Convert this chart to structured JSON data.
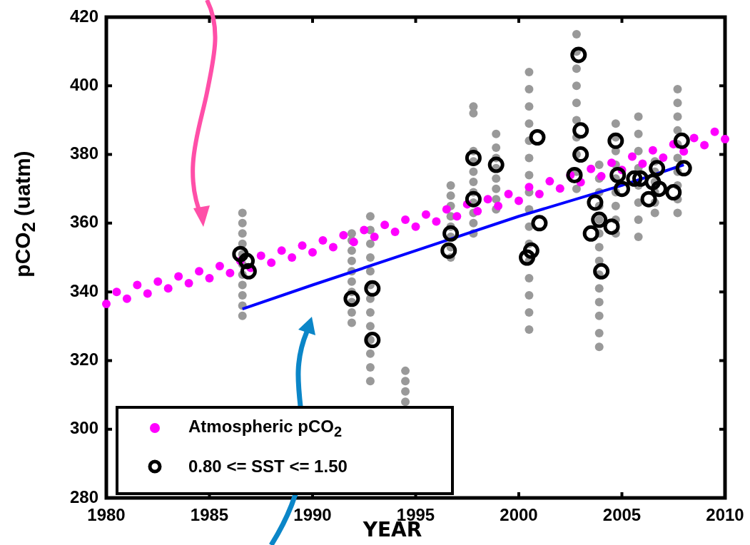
{
  "chart_data": {
    "type": "scatter",
    "xlabel": "YEAR",
    "ylabel": "pCO$_{2}$ (uatm)",
    "xlim": [
      1980,
      2010
    ],
    "xticks": [
      1980,
      1985,
      1990,
      1995,
      2000,
      2005,
      2010
    ],
    "ylim": [
      280,
      420
    ],
    "yticks": [
      280,
      300,
      320,
      340,
      360,
      380,
      400,
      420
    ],
    "grid": false,
    "legend": "bottom left",
    "series": [
      {
        "color": "#999999",
        "marker": "circle",
        "x": [
          1986.6,
          1986.6,
          1986.6,
          1986.6,
          1986.6,
          1986.6,
          1986.6,
          1986.6,
          1986.6,
          1986.6,
          1986.6,
          1991.9,
          1991.9,
          1991.9,
          1991.9,
          1991.9,
          1991.9,
          1991.9,
          1991.9,
          1991.9,
          1991.9,
          1992.8,
          1992.8,
          1992.8,
          1992.8,
          1992.8,
          1992.8,
          1992.8,
          1992.8,
          1992.8,
          1992.8,
          1992.8,
          1992.8,
          1992.8,
          1994.5,
          1994.5,
          1994.5,
          1994.5,
          1996.7,
          1996.7,
          1996.7,
          1996.7,
          1996.7,
          1996.7,
          1996.7,
          1996.7,
          1997.8,
          1997.8,
          1997.8,
          1997.8,
          1997.8,
          1997.8,
          1997.8,
          1997.8,
          1997.8,
          1997.8,
          1997.8,
          1998.9,
          1998.9,
          1998.9,
          1998.9,
          1998.9,
          1998.9,
          1998.9,
          1998.9,
          2000.5,
          2000.5,
          2000.5,
          2000.5,
          2000.5,
          2000.5,
          2000.5,
          2000.5,
          2000.5,
          2000.5,
          2000.5,
          2000.5,
          2000.5,
          2000.5,
          2000.5,
          2000.5,
          2002.8,
          2002.8,
          2002.8,
          2002.8,
          2002.8,
          2002.8,
          2002.8,
          2002.8,
          2002.8,
          2002.8,
          2003.9,
          2003.9,
          2003.9,
          2003.9,
          2003.9,
          2003.9,
          2003.9,
          2003.9,
          2003.9,
          2003.9,
          2003.9,
          2003.9,
          2003.9,
          2003.9,
          2004.7,
          2004.7,
          2004.7,
          2004.7,
          2004.7,
          2004.7,
          2004.7,
          2004.7,
          2004.7,
          2005.8,
          2005.8,
          2005.8,
          2005.8,
          2005.8,
          2005.8,
          2005.8,
          2005.8,
          2006.6,
          2006.6,
          2006.6,
          2006.6,
          2006.6,
          2006.6,
          2007.7,
          2007.7,
          2007.7,
          2007.7,
          2007.7,
          2007.7,
          2007.7,
          2007.7,
          2007.7,
          2007.7
        ],
        "values": [
          333,
          336,
          339,
          342,
          345,
          348,
          351,
          354,
          357,
          360,
          363,
          331,
          334,
          337,
          340,
          343,
          346,
          349,
          352,
          355,
          357,
          314,
          318,
          322,
          326,
          330,
          334,
          338,
          342,
          346,
          350,
          354,
          358,
          362,
          308,
          311,
          314,
          317,
          350,
          353,
          356,
          359,
          362,
          365,
          368,
          371,
          357,
          360,
          363,
          366,
          369,
          372,
          375,
          378,
          381,
          392,
          394,
          364,
          367,
          370,
          373,
          376,
          379,
          382,
          386,
          329,
          334,
          339,
          344,
          349,
          354,
          359,
          364,
          369,
          374,
          379,
          384,
          389,
          394,
          399,
          404,
          370,
          375,
          380,
          385,
          390,
          395,
          400,
          405,
          410,
          415,
          324,
          328,
          333,
          337,
          341,
          345,
          349,
          353,
          357,
          361,
          365,
          369,
          373,
          377,
          357,
          361,
          365,
          369,
          373,
          377,
          381,
          385,
          389,
          356,
          361,
          366,
          371,
          376,
          381,
          386,
          391,
          363,
          366,
          369,
          372,
          375,
          378,
          363,
          367,
          371,
          375,
          379,
          383,
          387,
          391,
          395,
          399
        ]
      },
      {
        "name": "Atmospheric pCO$_{2}$",
        "color": "#ff00ff",
        "marker": "circle",
        "x": [
          1980,
          1980.5,
          1981,
          1981.5,
          1982,
          1982.5,
          1983,
          1983.5,
          1984,
          1984.5,
          1985,
          1985.5,
          1986,
          1986.5,
          1987,
          1987.5,
          1988,
          1988.5,
          1989,
          1989.5,
          1990,
          1990.5,
          1991,
          1991.5,
          1992,
          1992.5,
          1993,
          1993.5,
          1994,
          1994.5,
          1995,
          1995.5,
          1996,
          1996.5,
          1997,
          1997.5,
          1998,
          1998.5,
          1999,
          1999.5,
          2000,
          2000.5,
          2001,
          2001.5,
          2002,
          2002.5,
          2003,
          2003.5,
          2004,
          2004.5,
          2005,
          2005.5,
          2006,
          2006.5,
          2007,
          2007.5,
          2008,
          2008.5,
          2009,
          2009.5,
          2010
        ],
        "values": [
          336.5,
          340,
          338,
          342,
          339.5,
          343,
          341,
          344.5,
          342.5,
          346,
          344,
          347.5,
          345.5,
          349,
          347,
          350.5,
          348.5,
          352,
          350,
          353.5,
          351.5,
          355,
          353,
          356.5,
          354.5,
          358,
          356,
          359.5,
          357.5,
          361,
          359,
          362.5,
          360.5,
          364,
          362,
          365.5,
          363.5,
          367,
          365,
          368.5,
          366.5,
          370.5,
          368.5,
          372.2,
          370.1,
          374,
          371.9,
          375.8,
          373.7,
          377.6,
          375.5,
          379.4,
          377.3,
          381.2,
          379.1,
          383,
          380.9,
          384.8,
          382.7,
          386.6,
          384.5
        ]
      },
      {
        "type": "line",
        "color": "#0000ff",
        "marker": "none",
        "x": [
          1986.6,
          1990,
          1995,
          2000,
          2005,
          2008
        ],
        "values": [
          335,
          342,
          352,
          362,
          371,
          377
        ]
      },
      {
        "name": "0.80 <= SST <=  1.50",
        "color": "#000000",
        "marker": "circle",
        "x": [
          1986.5,
          1986.8,
          1986.9,
          1991.9,
          1992.9,
          1992.9,
          1996.6,
          1996.7,
          1997.8,
          1997.8,
          1998.9,
          2000.4,
          2000.6,
          2000.9,
          2001,
          2002.7,
          2002.9,
          2003,
          2003,
          2003.5,
          2003.7,
          2003.9,
          2004,
          2004.5,
          2004.7,
          2004.8,
          2005,
          2005.6,
          2005.9,
          2006.3,
          2006.5,
          2006.7,
          2006.8,
          2007.5,
          2007.9,
          2008
        ],
        "values": [
          351,
          349,
          346,
          338,
          341,
          326,
          352,
          357,
          379,
          367,
          377,
          350,
          352,
          385,
          360,
          374,
          409,
          387,
          380,
          357,
          366,
          361,
          346,
          359,
          384,
          374,
          370,
          373,
          373,
          367,
          372,
          376,
          370,
          369,
          384,
          376
        ]
      }
    ]
  }
}
